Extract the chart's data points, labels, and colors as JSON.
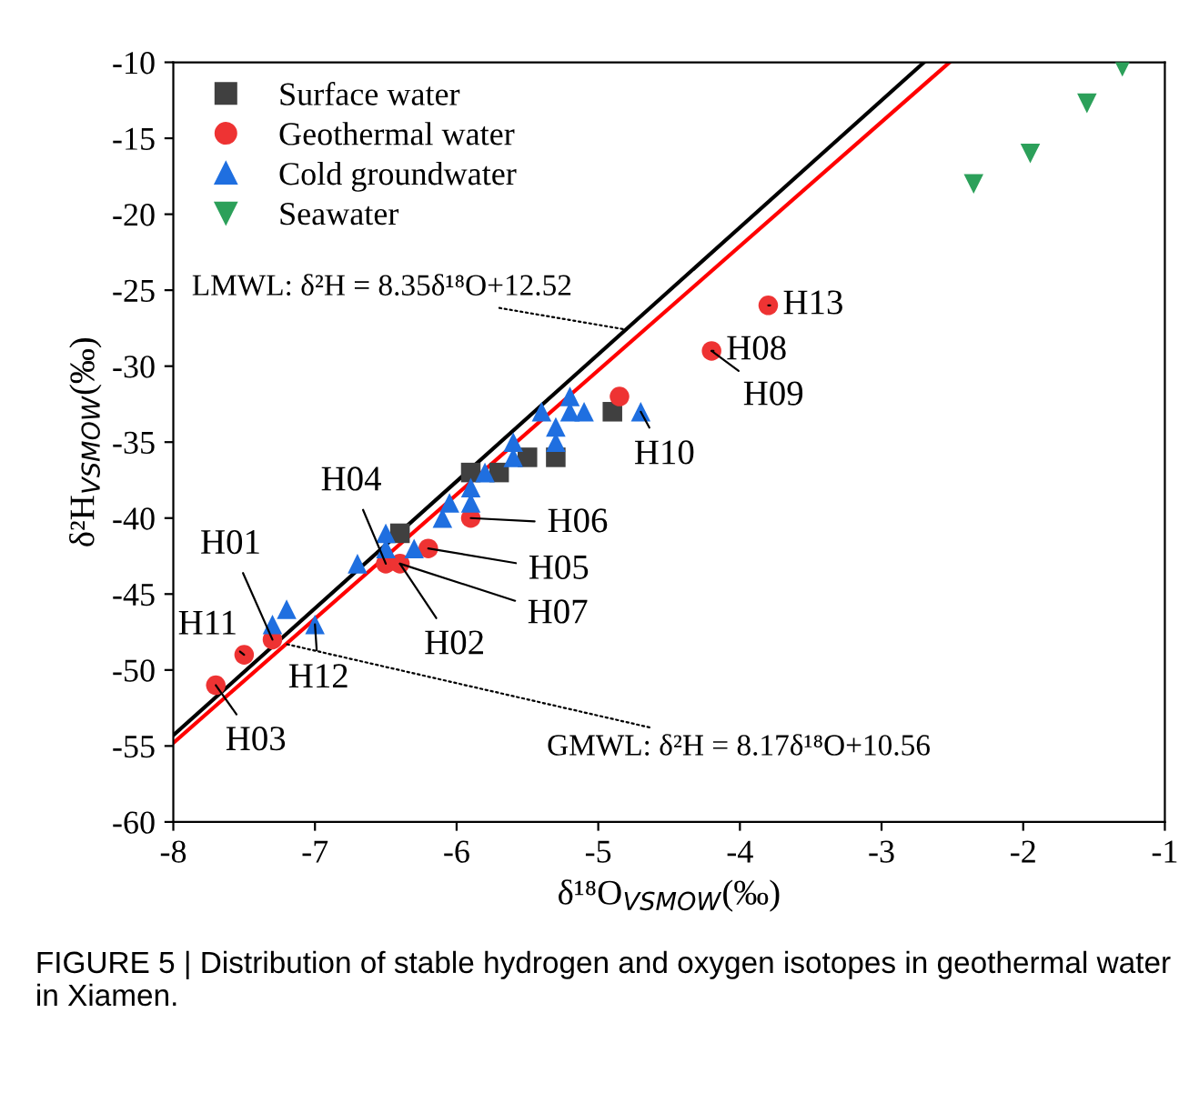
{
  "chart_data": {
    "type": "scatter",
    "xlabel": "δ¹⁸O$_{VSMOW}$(‰)",
    "ylabel": "δ²H$_{VSMOW}$(‰)",
    "xlim": [
      -8,
      -1
    ],
    "ylim": [
      -60,
      -10
    ],
    "xticks": [
      -8,
      -7,
      -6,
      -5,
      -4,
      -3,
      -2,
      -1
    ],
    "yticks": [
      -60,
      -55,
      -50,
      -45,
      -40,
      -35,
      -30,
      -25,
      -20,
      -15,
      -10
    ],
    "grid": false,
    "legend": "top left",
    "series": [
      {
        "name": "Surface water",
        "color": "#404040",
        "marker": "square",
        "x": [
          -6.4,
          -5.9,
          -5.7,
          -5.5,
          -5.3,
          -4.9
        ],
        "values": [
          -41,
          -37,
          -37,
          -36,
          -36,
          -33
        ]
      },
      {
        "name": "Geothermal water",
        "color": "#ee3333",
        "marker": "circle",
        "x": [
          -7.7,
          -7.5,
          -7.3,
          -6.5,
          -6.4,
          -6.2,
          -5.9,
          -4.85,
          -4.2,
          -3.8
        ],
        "values": [
          -51,
          -49,
          -48,
          -43,
          -43,
          -42,
          -40,
          -32,
          -29,
          -26
        ]
      },
      {
        "name": "Cold groundwater",
        "color": "#1f6fe0",
        "marker": "triangle",
        "x": [
          -7.3,
          -7.2,
          -7.0,
          -6.7,
          -6.5,
          -6.5,
          -6.3,
          -6.1,
          -6.05,
          -5.9,
          -5.9,
          -5.8,
          -5.6,
          -5.6,
          -5.4,
          -5.3,
          -5.3,
          -5.2,
          -5.2,
          -5.1,
          -4.7
        ],
        "values": [
          -47,
          -46,
          -47,
          -43,
          -41,
          -42,
          -42,
          -40,
          -39,
          -38,
          -39,
          -37,
          -35,
          -36,
          -33,
          -34,
          -35,
          -32,
          -33,
          -33,
          -33
        ]
      },
      {
        "name": "Seawater",
        "color": "#2ca05a",
        "marker": "triangle_down",
        "x": [
          -2.35,
          -1.95,
          -1.55,
          -1.3
        ],
        "values": [
          -18,
          -16,
          -12.7,
          -10.3
        ]
      },
      {
        "type": "line",
        "color": "#000000",
        "line_style": "solid",
        "x": [
          -8,
          -2.7
        ],
        "values": [
          -54.3,
          -10.0
        ]
      },
      {
        "type": "line",
        "color": "#ff0000",
        "line_style": "solid",
        "x": [
          -8,
          -2.52
        ],
        "values": [
          -54.8,
          -10.0
        ]
      }
    ],
    "annotations": [
      {
        "text": "H13",
        "x": -3.8,
        "y": -26
      },
      {
        "text": "H08",
        "x": -4.2,
        "y": -29
      },
      {
        "text": "H09",
        "x": -4.2,
        "y": -29
      },
      {
        "text": "H10",
        "x": -4.7,
        "y": -33
      },
      {
        "text": "H06",
        "x": -5.9,
        "y": -40
      },
      {
        "text": "H05",
        "x": -6.2,
        "y": -42
      },
      {
        "text": "H07",
        "x": -6.4,
        "y": -43
      },
      {
        "text": "H02",
        "x": -6.4,
        "y": -43
      },
      {
        "text": "H04",
        "x": -6.5,
        "y": -43
      },
      {
        "text": "H01",
        "x": -7.3,
        "y": -48
      },
      {
        "text": "H11",
        "x": -7.5,
        "y": -49
      },
      {
        "text": "H12",
        "x": -7.0,
        "y": -47
      },
      {
        "text": "H03",
        "x": -7.7,
        "y": -51
      },
      {
        "text": "LMWL: δ²H = 8.35δ¹⁸O+12.52",
        "x": -4.8,
        "y": -27.6
      },
      {
        "text": "GMWL: δ²H = 8.17δ¹⁸O+10.56",
        "x": -7.2,
        "y": -48.3
      },
      "FIGURE 5 | Distribution of stable hydrogen and oxygen isotopes in geothermal water in Xiamen."
    ]
  }
}
